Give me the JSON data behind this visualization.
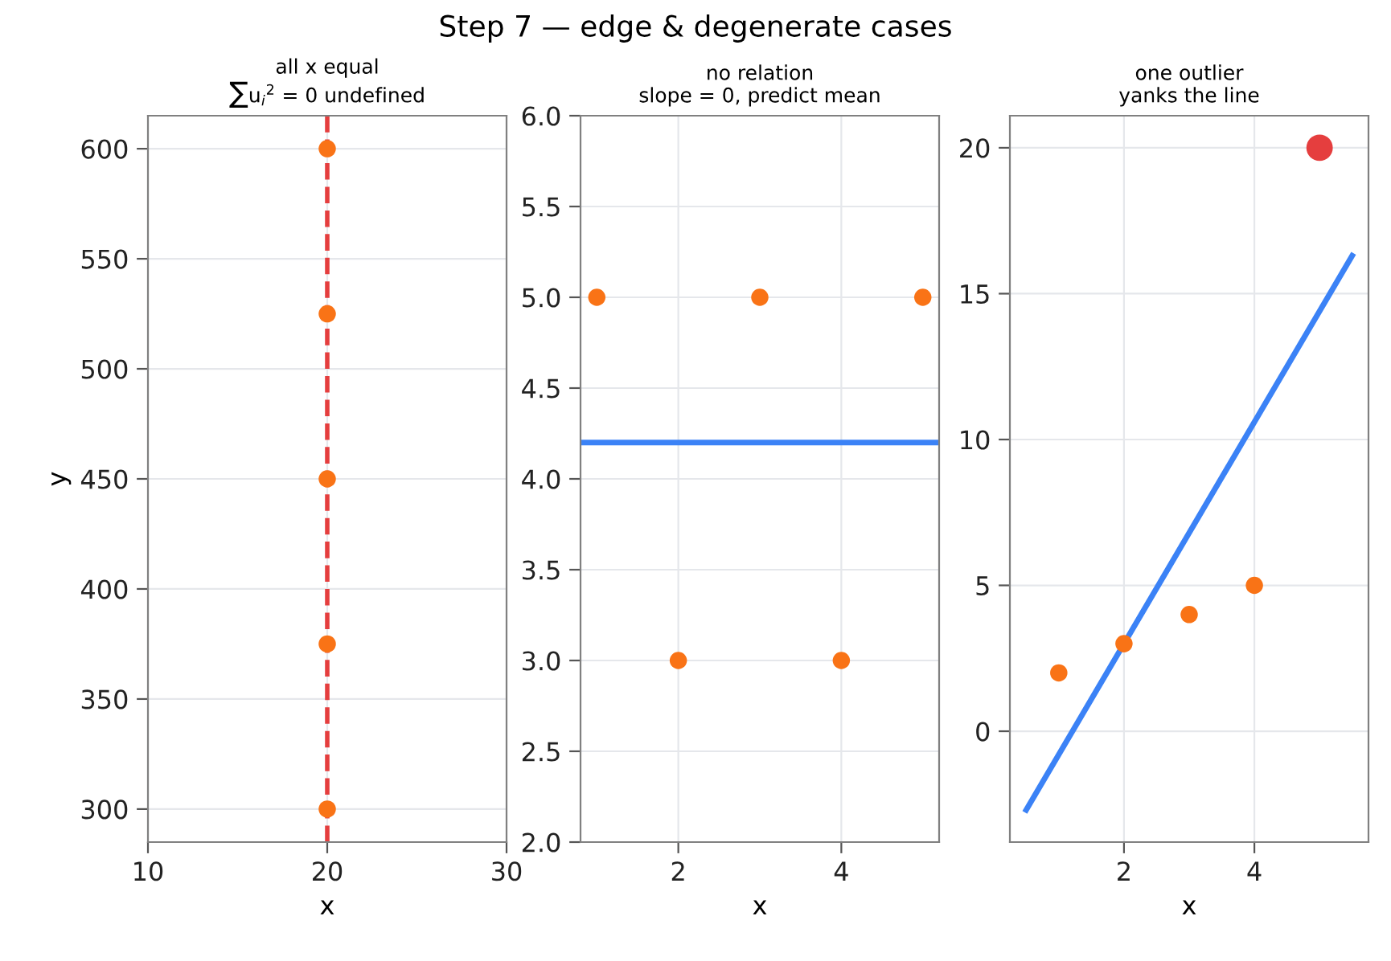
{
  "chart_data": [
    {
      "type": "scatter",
      "annotations": [
        "Step 7 — edge & degenerate cases"
      ],
      "title": "all x equal\n∑u$_{i}$$^{2}$ = 0 undefined",
      "xlabel": "x",
      "ylabel": "y",
      "marker": "circle",
      "grid": true,
      "xlim": [
        10,
        30
      ],
      "ylim": [
        285,
        615
      ],
      "xticks": [
        10,
        20,
        30
      ],
      "yticks": [
        300,
        350,
        400,
        450,
        500,
        550,
        600
      ],
      "series": [
        {
          "x": [
            20,
            20,
            20,
            20,
            20
          ],
          "values": [
            300,
            375,
            450,
            525,
            600
          ],
          "color": "#f97316"
        }
      ],
      "ref_lines": [
        {
          "axis": "x",
          "value": 20,
          "color": "#e53e3e",
          "line_style": "dashed"
        }
      ]
    },
    {
      "type": "scatter",
      "title": "no relation\nslope = 0, predict mean",
      "xlabel": "x",
      "marker": "circle",
      "grid": true,
      "xlim": [
        0.8,
        5.2
      ],
      "ylim": [
        2.0,
        6.0
      ],
      "xticks": [
        2,
        4
      ],
      "yticks": [
        {
          "value": 2,
          "label": "2.0"
        },
        2.5,
        {
          "value": 3,
          "label": "3.0"
        },
        3.5,
        {
          "value": 4,
          "label": "4.0"
        },
        4.5,
        {
          "value": 5,
          "label": "5.0"
        },
        5.5,
        {
          "value": 6,
          "label": "6.0"
        }
      ],
      "series": [
        {
          "x": [
            1,
            2,
            3,
            4,
            5
          ],
          "values": [
            5,
            3,
            5,
            3,
            5
          ],
          "color": "#f97316"
        },
        {
          "type": "line",
          "marker": "none",
          "x": [
            0.8,
            5.2
          ],
          "values": [
            4.2,
            4.2
          ],
          "color": "#3b82f6"
        }
      ]
    },
    {
      "type": "scatter",
      "title": "one outlier\nyanks the line",
      "xlabel": "x",
      "marker": "circle",
      "grid": true,
      "xlim": [
        0.25,
        5.75
      ],
      "ylim": [
        -3.8,
        21.1
      ],
      "xticks": [
        2,
        4
      ],
      "yticks": [
        0,
        5,
        10,
        15,
        20
      ],
      "series": [
        {
          "x": [
            1,
            2,
            3,
            4
          ],
          "values": [
            2,
            3,
            4,
            5
          ],
          "color": "#f97316"
        },
        {
          "x": [
            5
          ],
          "values": [
            20
          ],
          "color": "#e53e3e"
        },
        {
          "type": "line",
          "marker": "none",
          "x": [
            0.5,
            5.5
          ],
          "values": [
            -2.7,
            16.3
          ],
          "color": "#3b82f6"
        }
      ]
    }
  ]
}
